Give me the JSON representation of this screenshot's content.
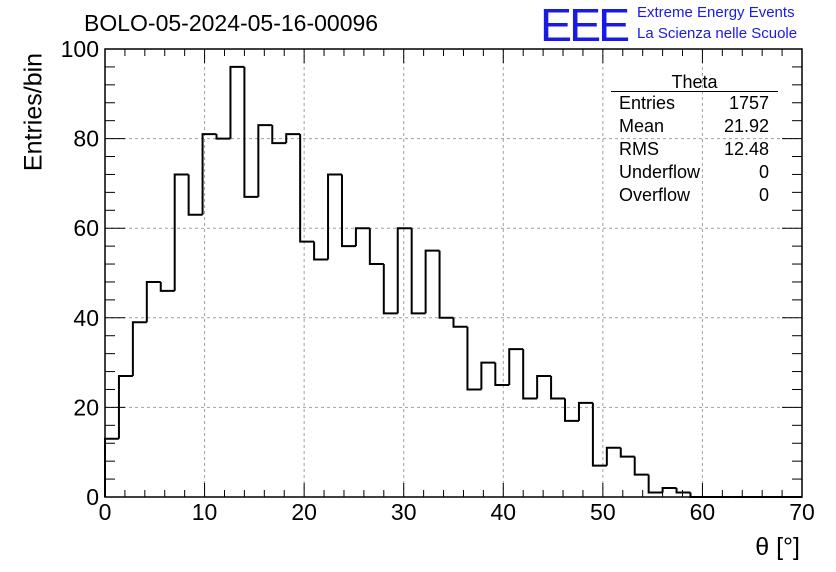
{
  "title": "BOLO-05-2024-05-16-00096",
  "logo": {
    "mark": "EEE",
    "line1": "Extreme Energy Events",
    "line2": "La Scienza nelle Scuole",
    "color": "#1a1ae6"
  },
  "stats": {
    "name": "Theta",
    "rows": [
      {
        "label": "Entries",
        "value": "1757"
      },
      {
        "label": "Mean",
        "value": "21.92"
      },
      {
        "label": "RMS",
        "value": "12.48"
      },
      {
        "label": "Underflow",
        "value": "0"
      },
      {
        "label": "Overflow",
        "value": "0"
      }
    ]
  },
  "chart_data": {
    "type": "bar",
    "style": "step-histogram",
    "ylabel": "Entries/bin",
    "xlabel": "θ [°]",
    "xlim": [
      0,
      70
    ],
    "ylim": [
      0,
      100
    ],
    "bin_width": 1.4,
    "x_ticks": [
      0,
      10,
      20,
      30,
      40,
      50,
      60,
      70
    ],
    "y_ticks": [
      0,
      20,
      40,
      60,
      80,
      100
    ],
    "grid": true,
    "bin_start": [
      0,
      1.4,
      2.8,
      4.2,
      5.6,
      7.0,
      8.4,
      9.8,
      11.2,
      12.6,
      14.0,
      15.4,
      16.8,
      18.2,
      19.6,
      21.0,
      22.4,
      23.8,
      25.2,
      26.6,
      28.0,
      29.4,
      30.8,
      32.2,
      33.6,
      35.0,
      36.4,
      37.8,
      39.2,
      40.6,
      42.0,
      43.4,
      44.8,
      46.2,
      47.6,
      49.0,
      50.4,
      51.8,
      53.2,
      54.6,
      56.0,
      57.4,
      58.8,
      60.2,
      61.6,
      63.0,
      64.4,
      65.8,
      67.2,
      68.6
    ],
    "values": [
      13,
      27,
      39,
      48,
      46,
      72,
      63,
      81,
      80,
      96,
      67,
      83,
      79,
      81,
      57,
      53,
      72,
      56,
      60,
      52,
      41,
      60,
      41,
      55,
      40,
      38,
      24,
      30,
      25,
      33,
      22,
      27,
      22,
      17,
      21,
      7,
      11,
      9,
      5,
      1,
      2,
      1,
      0,
      0,
      0,
      0,
      0,
      0,
      0,
      0
    ]
  }
}
